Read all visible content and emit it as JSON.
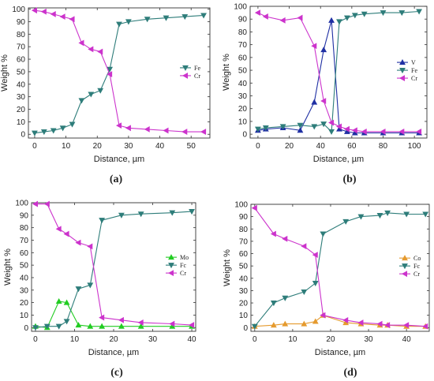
{
  "chart_data": [
    {
      "type": "line",
      "caption": "(a)",
      "xlabel": "Distance, µm",
      "ylabel": "Weight %",
      "xlim": [
        -2,
        56
      ],
      "ylim": [
        -3,
        101
      ],
      "xticks": [
        0,
        10,
        20,
        30,
        40,
        50
      ],
      "yticks": [
        0,
        10,
        20,
        30,
        40,
        50,
        60,
        70,
        80,
        90,
        100
      ],
      "legend_position": "right",
      "series": [
        {
          "name": "Fe",
          "color": "#2e7d7a",
          "marker": "triangle-down",
          "x": [
            0,
            3,
            6,
            9,
            12,
            15,
            18,
            21,
            24,
            27,
            30,
            36,
            42,
            48,
            54
          ],
          "y": [
            1,
            2,
            3,
            5,
            8,
            27,
            32,
            35,
            52,
            88,
            90,
            92,
            93,
            94,
            95
          ]
        },
        {
          "name": "Cr",
          "color": "#cc33cc",
          "marker": "triangle-left",
          "x": [
            0,
            3,
            6,
            9,
            12,
            15,
            18,
            21,
            24,
            27,
            30,
            36,
            42,
            48,
            54
          ],
          "y": [
            99,
            98,
            96,
            94,
            92,
            73,
            68,
            66,
            48,
            7,
            5,
            4,
            3,
            2,
            2
          ]
        }
      ]
    },
    {
      "type": "line",
      "caption": "(b)",
      "xlabel": "Distance, µm",
      "ylabel": "Weight %",
      "xlim": [
        -5,
        108
      ],
      "ylim": [
        -3,
        100
      ],
      "xticks": [
        0,
        20,
        40,
        60,
        80,
        100
      ],
      "yticks": [
        0,
        10,
        20,
        30,
        40,
        50,
        60,
        70,
        80,
        90,
        100
      ],
      "legend_position": "right",
      "series": [
        {
          "name": "V",
          "color": "#1f2fa3",
          "marker": "triangle-up",
          "x": [
            0,
            5,
            16,
            27,
            36,
            42,
            47,
            52,
            57,
            62,
            68,
            80,
            92,
            103
          ],
          "y": [
            3,
            4,
            5,
            3,
            25,
            66,
            89,
            4,
            2,
            1,
            1,
            1,
            1,
            1
          ]
        },
        {
          "name": "Fe",
          "color": "#2e7d7a",
          "marker": "triangle-down",
          "x": [
            0,
            5,
            16,
            27,
            36,
            42,
            47,
            52,
            57,
            62,
            68,
            80,
            92,
            103
          ],
          "y": [
            4,
            5,
            6,
            7,
            6,
            8,
            2,
            88,
            91,
            93,
            94,
            95,
            95,
            96
          ]
        },
        {
          "name": "Cr",
          "color": "#cc33cc",
          "marker": "triangle-left",
          "x": [
            0,
            5,
            16,
            27,
            36,
            42,
            47,
            52,
            57,
            62,
            68,
            80,
            92,
            103
          ],
          "y": [
            95,
            92,
            89,
            91,
            69,
            26,
            9,
            6,
            4,
            3,
            2,
            2,
            2,
            2
          ]
        }
      ]
    },
    {
      "type": "line",
      "caption": "(c)",
      "xlabel": "Distance, µm",
      "ylabel": "Weight %",
      "xlim": [
        -1,
        41
      ],
      "ylim": [
        -3,
        100
      ],
      "xticks": [
        0,
        10,
        20,
        30,
        40
      ],
      "yticks": [
        0,
        10,
        20,
        30,
        40,
        50,
        60,
        70,
        80,
        90,
        100
      ],
      "legend_position": "right",
      "series": [
        {
          "name": "Mo",
          "color": "#22cc22",
          "marker": "triangle-up",
          "x": [
            0,
            3,
            6,
            8,
            11,
            14,
            17,
            22,
            27,
            35,
            40
          ],
          "y": [
            1,
            0,
            21,
            20,
            2,
            1,
            1,
            1,
            1,
            1,
            1
          ]
        },
        {
          "name": "Fc",
          "color": "#2e7d7a",
          "marker": "triangle-down",
          "x": [
            0,
            3,
            6,
            8,
            11,
            14,
            17,
            22,
            27,
            35,
            40
          ],
          "y": [
            0,
            1,
            1,
            5,
            31,
            34,
            86,
            90,
            91,
            92,
            93
          ]
        },
        {
          "name": "Cr",
          "color": "#cc33cc",
          "marker": "triangle-left",
          "x": [
            0,
            3,
            6,
            8,
            11,
            14,
            17,
            22,
            27,
            35,
            40
          ],
          "y": [
            99,
            99,
            79,
            75,
            68,
            65,
            8,
            6,
            4,
            3,
            2
          ]
        }
      ]
    },
    {
      "type": "line",
      "caption": "(d)",
      "xlabel": "Distance, µm",
      "ylabel": "Weight %",
      "xlim": [
        -1,
        46
      ],
      "ylim": [
        -3,
        100
      ],
      "xticks": [
        0,
        10,
        20,
        30,
        40
      ],
      "yticks": [
        0,
        10,
        20,
        30,
        40,
        50,
        60,
        70,
        80,
        90,
        100
      ],
      "legend_position": "right",
      "series": [
        {
          "name": "Co",
          "color": "#e59a2e",
          "marker": "triangle-up",
          "x": [
            0,
            5,
            8,
            13,
            16,
            18,
            24,
            28,
            33,
            35,
            40,
            45
          ],
          "y": [
            1,
            2,
            3,
            3,
            5,
            10,
            4,
            3,
            2,
            2,
            1,
            1
          ]
        },
        {
          "name": "Fc",
          "color": "#2e7d7a",
          "marker": "triangle-down",
          "x": [
            0,
            5,
            8,
            13,
            16,
            18,
            24,
            28,
            33,
            35,
            40,
            45
          ],
          "y": [
            1,
            20,
            24,
            29,
            36,
            76,
            86,
            90,
            91,
            93,
            92,
            92
          ]
        },
        {
          "name": "Cr",
          "color": "#cc33cc",
          "marker": "triangle-left",
          "x": [
            0,
            5,
            8,
            13,
            16,
            18,
            24,
            28,
            33,
            35,
            40,
            45
          ],
          "y": [
            97,
            76,
            72,
            66,
            59,
            10,
            6,
            4,
            3,
            2,
            2,
            1
          ]
        }
      ]
    }
  ]
}
